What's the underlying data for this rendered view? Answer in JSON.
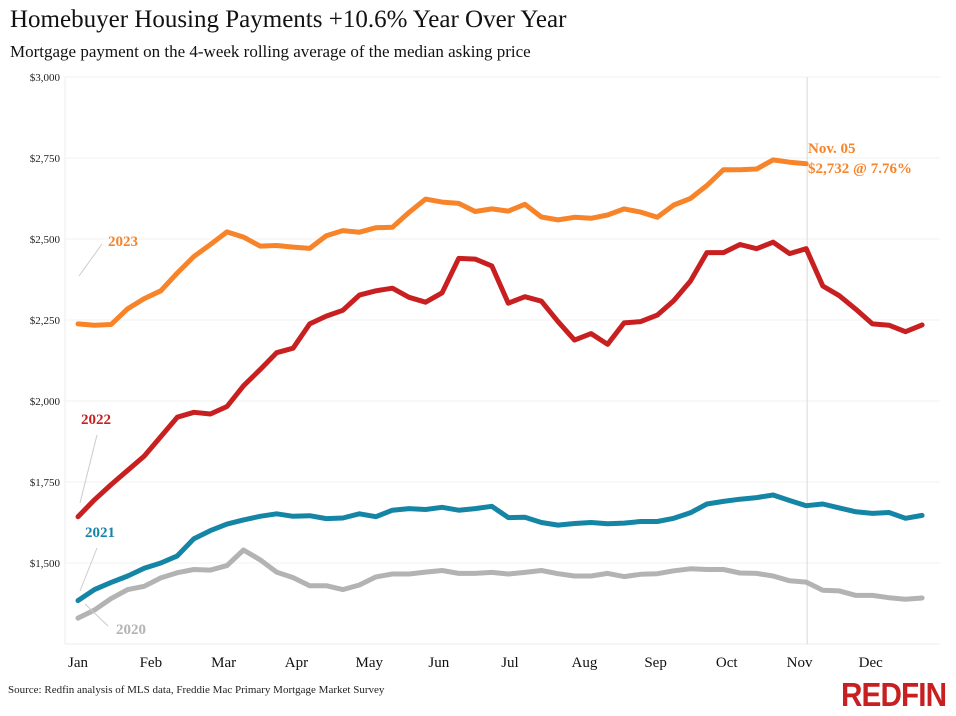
{
  "header": {
    "title": "Homebuyer Housing Payments +10.6% Year Over Year",
    "subtitle": "Mortgage payment on the 4-week rolling average of the median asking price"
  },
  "footer": {
    "source": "Source: Redfin analysis of MLS data, Freddie Mac Primary Mortgage Market Survey",
    "logo": "REDFIN"
  },
  "chart_data": {
    "type": "line",
    "title": "Homebuyer Housing Payments +10.6% Year Over Year",
    "subtitle": "Mortgage payment on the 4-week rolling average of the median asking price",
    "xlabel": "",
    "ylabel": "",
    "ylim": [
      1250,
      3000
    ],
    "yticks": [
      1500,
      1750,
      2000,
      2250,
      2500,
      2750,
      3000
    ],
    "ytick_labels": [
      "$1,500",
      "$1,750",
      "$2,000",
      "$2,250",
      "$2,500",
      "$2,750",
      "$3,000"
    ],
    "xticks": [
      "Jan",
      "Feb",
      "Mar",
      "Apr",
      "May",
      "Jun",
      "Jul",
      "Aug",
      "Sep",
      "Oct",
      "Nov",
      "Dec"
    ],
    "x_unit": "week of year (1-52)",
    "grid": true,
    "legend": "inline labels at left",
    "series": [
      {
        "name": "2020",
        "color": "#b3b3b3",
        "values": [
          1330,
          1355,
          1390,
          1418,
          1428,
          1454,
          1470,
          1480,
          1478,
          1492,
          1540,
          1510,
          1472,
          1455,
          1430,
          1430,
          1418,
          1432,
          1457,
          1466,
          1466,
          1472,
          1477,
          1468,
          1468,
          1471,
          1466,
          1471,
          1477,
          1467,
          1460,
          1460,
          1468,
          1458,
          1465,
          1467,
          1476,
          1482,
          1480,
          1480,
          1469,
          1468,
          1460,
          1445,
          1441,
          1416,
          1414,
          1400,
          1400,
          1393,
          1388,
          1392
        ]
      },
      {
        "name": "2021",
        "color": "#1585a6",
        "values": [
          1384,
          1418,
          1440,
          1460,
          1484,
          1500,
          1522,
          1575,
          1600,
          1620,
          1633,
          1644,
          1652,
          1644,
          1646,
          1637,
          1639,
          1652,
          1643,
          1663,
          1668,
          1665,
          1672,
          1663,
          1668,
          1675,
          1640,
          1641,
          1625,
          1617,
          1622,
          1625,
          1621,
          1623,
          1628,
          1628,
          1638,
          1655,
          1682,
          1690,
          1697,
          1702,
          1710,
          1693,
          1677,
          1682,
          1670,
          1658,
          1653,
          1656,
          1638,
          1647
        ]
      },
      {
        "name": "2022",
        "color": "#c82021",
        "values": [
          1643,
          1695,
          1742,
          1786,
          1830,
          1890,
          1950,
          1965,
          1960,
          1983,
          2047,
          2097,
          2149,
          2163,
          2238,
          2262,
          2280,
          2327,
          2340,
          2348,
          2320,
          2305,
          2334,
          2440,
          2438,
          2417,
          2302,
          2322,
          2308,
          2245,
          2188,
          2208,
          2175,
          2241,
          2245,
          2265,
          2310,
          2370,
          2458,
          2458,
          2483,
          2470,
          2490,
          2455,
          2470,
          2355,
          2325,
          2283,
          2238,
          2234,
          2214,
          2235
        ]
      },
      {
        "name": "2023",
        "color": "#f8842a",
        "values": [
          2238,
          2234,
          2236,
          2285,
          2316,
          2340,
          2395,
          2446,
          2483,
          2522,
          2506,
          2478,
          2480,
          2475,
          2471,
          2510,
          2526,
          2521,
          2535,
          2536,
          2582,
          2623,
          2614,
          2610,
          2585,
          2593,
          2586,
          2607,
          2568,
          2559,
          2567,
          2564,
          2574,
          2593,
          2583,
          2567,
          2605,
          2625,
          2665,
          2714,
          2714,
          2716,
          2744,
          2737,
          2732
        ]
      }
    ],
    "annotations": [
      {
        "series": "2023",
        "line1": "Nov. 05",
        "line2": "$2,732 @ 7.76%",
        "week": 45
      }
    ],
    "reference_line": {
      "label": "Nov",
      "week": 45
    }
  }
}
